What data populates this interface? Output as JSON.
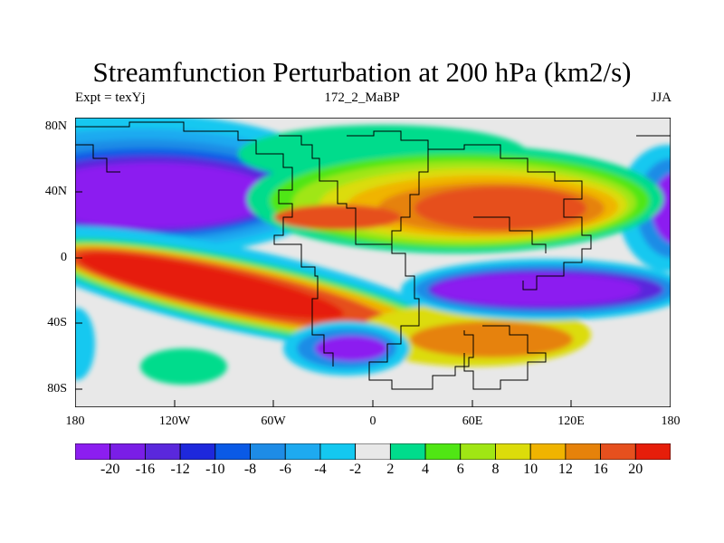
{
  "title": "Streamfunction Perturbation at 200 hPa (km2/s)",
  "left_label": "Expt = texYj",
  "center_label": "172_2_MaBP",
  "right_label": "JJA",
  "lat_ticks": [
    "80N",
    "40N",
    "0",
    "40S",
    "80S"
  ],
  "lon_ticks": [
    "180",
    "120W",
    "60W",
    "0",
    "60E",
    "120E",
    "180"
  ],
  "colorbar": {
    "labels": [
      "-20",
      "-16",
      "-12",
      "-10",
      "-8",
      "-6",
      "-4",
      "-2",
      "2",
      "4",
      "6",
      "8",
      "10",
      "12",
      "16",
      "20"
    ],
    "colors": [
      "#8c1ef0",
      "#7a1ee6",
      "#5a28dc",
      "#1e28dc",
      "#0a5ae6",
      "#1e8ce6",
      "#1eaaf0",
      "#14c8f0",
      "#e8e8e8",
      "#00dc8c",
      "#50e614",
      "#a0e614",
      "#dcdc0a",
      "#f0b400",
      "#e6820a",
      "#e6501e",
      "#e61e0a"
    ]
  }
}
